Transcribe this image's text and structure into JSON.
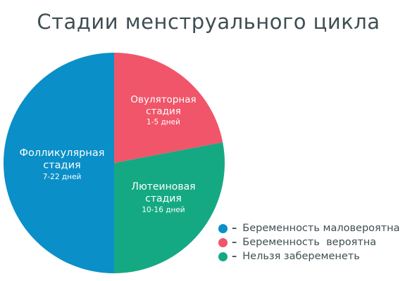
{
  "chart_data": {
    "type": "pie",
    "title": "Стадии менструального цикла",
    "slices": [
      {
        "label_lines": [
          "Фолликулярная",
          "стадия"
        ],
        "duration": "7-22 дней",
        "value": 50,
        "color": "#0a8fc8"
      },
      {
        "label_lines": [
          "Овуляторная",
          "стадия"
        ],
        "duration": "1-5 дней",
        "value": 22,
        "color": "#f05569"
      },
      {
        "label_lines": [
          "Лютеиновая",
          "стадия"
        ],
        "duration": "10-16 дней",
        "value": 28,
        "color": "#14a983"
      }
    ],
    "legend": [
      {
        "dash": "–",
        "label": "Беременность маловероятна",
        "color": "#0a8fc8"
      },
      {
        "dash": "–",
        "label": "Беременность  вероятна",
        "color": "#f05569"
      },
      {
        "dash": "–",
        "label": "Нельзя забеременеть",
        "color": "#14a983"
      }
    ],
    "legend_position": "bottom-right"
  }
}
